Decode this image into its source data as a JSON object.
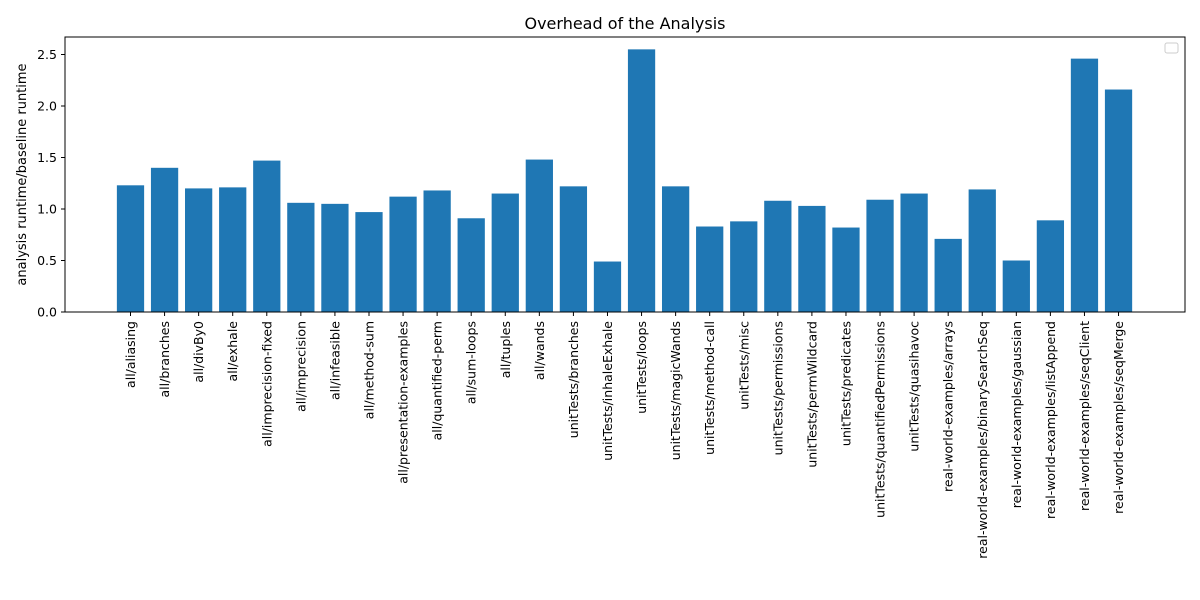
{
  "chart_data": {
    "type": "bar",
    "title": "Overhead of the Analysis",
    "xlabel": "",
    "ylabel": "analysis runtime/baseline runtime",
    "ylim": [
      0,
      2.67
    ],
    "yticks": [
      "0.0",
      "0.5",
      "1.0",
      "1.5",
      "2.0",
      "2.5"
    ],
    "grid": false,
    "legend": "empty box, top-right",
    "bar_color": "#1f77b4",
    "categories": [
      "all/aliasing",
      "all/branches",
      "all/divBy0",
      "all/exhale",
      "all/imprecision-fixed",
      "all/imprecision",
      "all/infeasible",
      "all/method-sum",
      "all/presentation-examples",
      "all/quantified-perm",
      "all/sum-loops",
      "all/tuples",
      "all/wands",
      "unitTests/branches",
      "unitTests/inhaleExhale",
      "unitTests/loops",
      "unitTests/magicWands",
      "unitTests/method-call",
      "unitTests/misc",
      "unitTests/permissions",
      "unitTests/permWildcard",
      "unitTests/predicates",
      "unitTests/quantifiedPermissions",
      "unitTests/quasihavoc",
      "real-world-examples/arrays",
      "real-world-examples/binarySearchSeq",
      "real-world-examples/gaussian",
      "real-world-examples/listAppend",
      "real-world-examples/seqClient",
      "real-world-examples/seqMerge"
    ],
    "values": [
      1.23,
      1.4,
      1.2,
      1.21,
      1.47,
      1.06,
      1.05,
      0.97,
      1.12,
      1.18,
      0.91,
      1.15,
      1.48,
      1.22,
      0.49,
      2.55,
      1.22,
      0.83,
      0.88,
      1.08,
      1.03,
      0.82,
      1.09,
      1.15,
      0.71,
      1.19,
      0.5,
      0.89,
      2.46,
      2.16
    ]
  }
}
